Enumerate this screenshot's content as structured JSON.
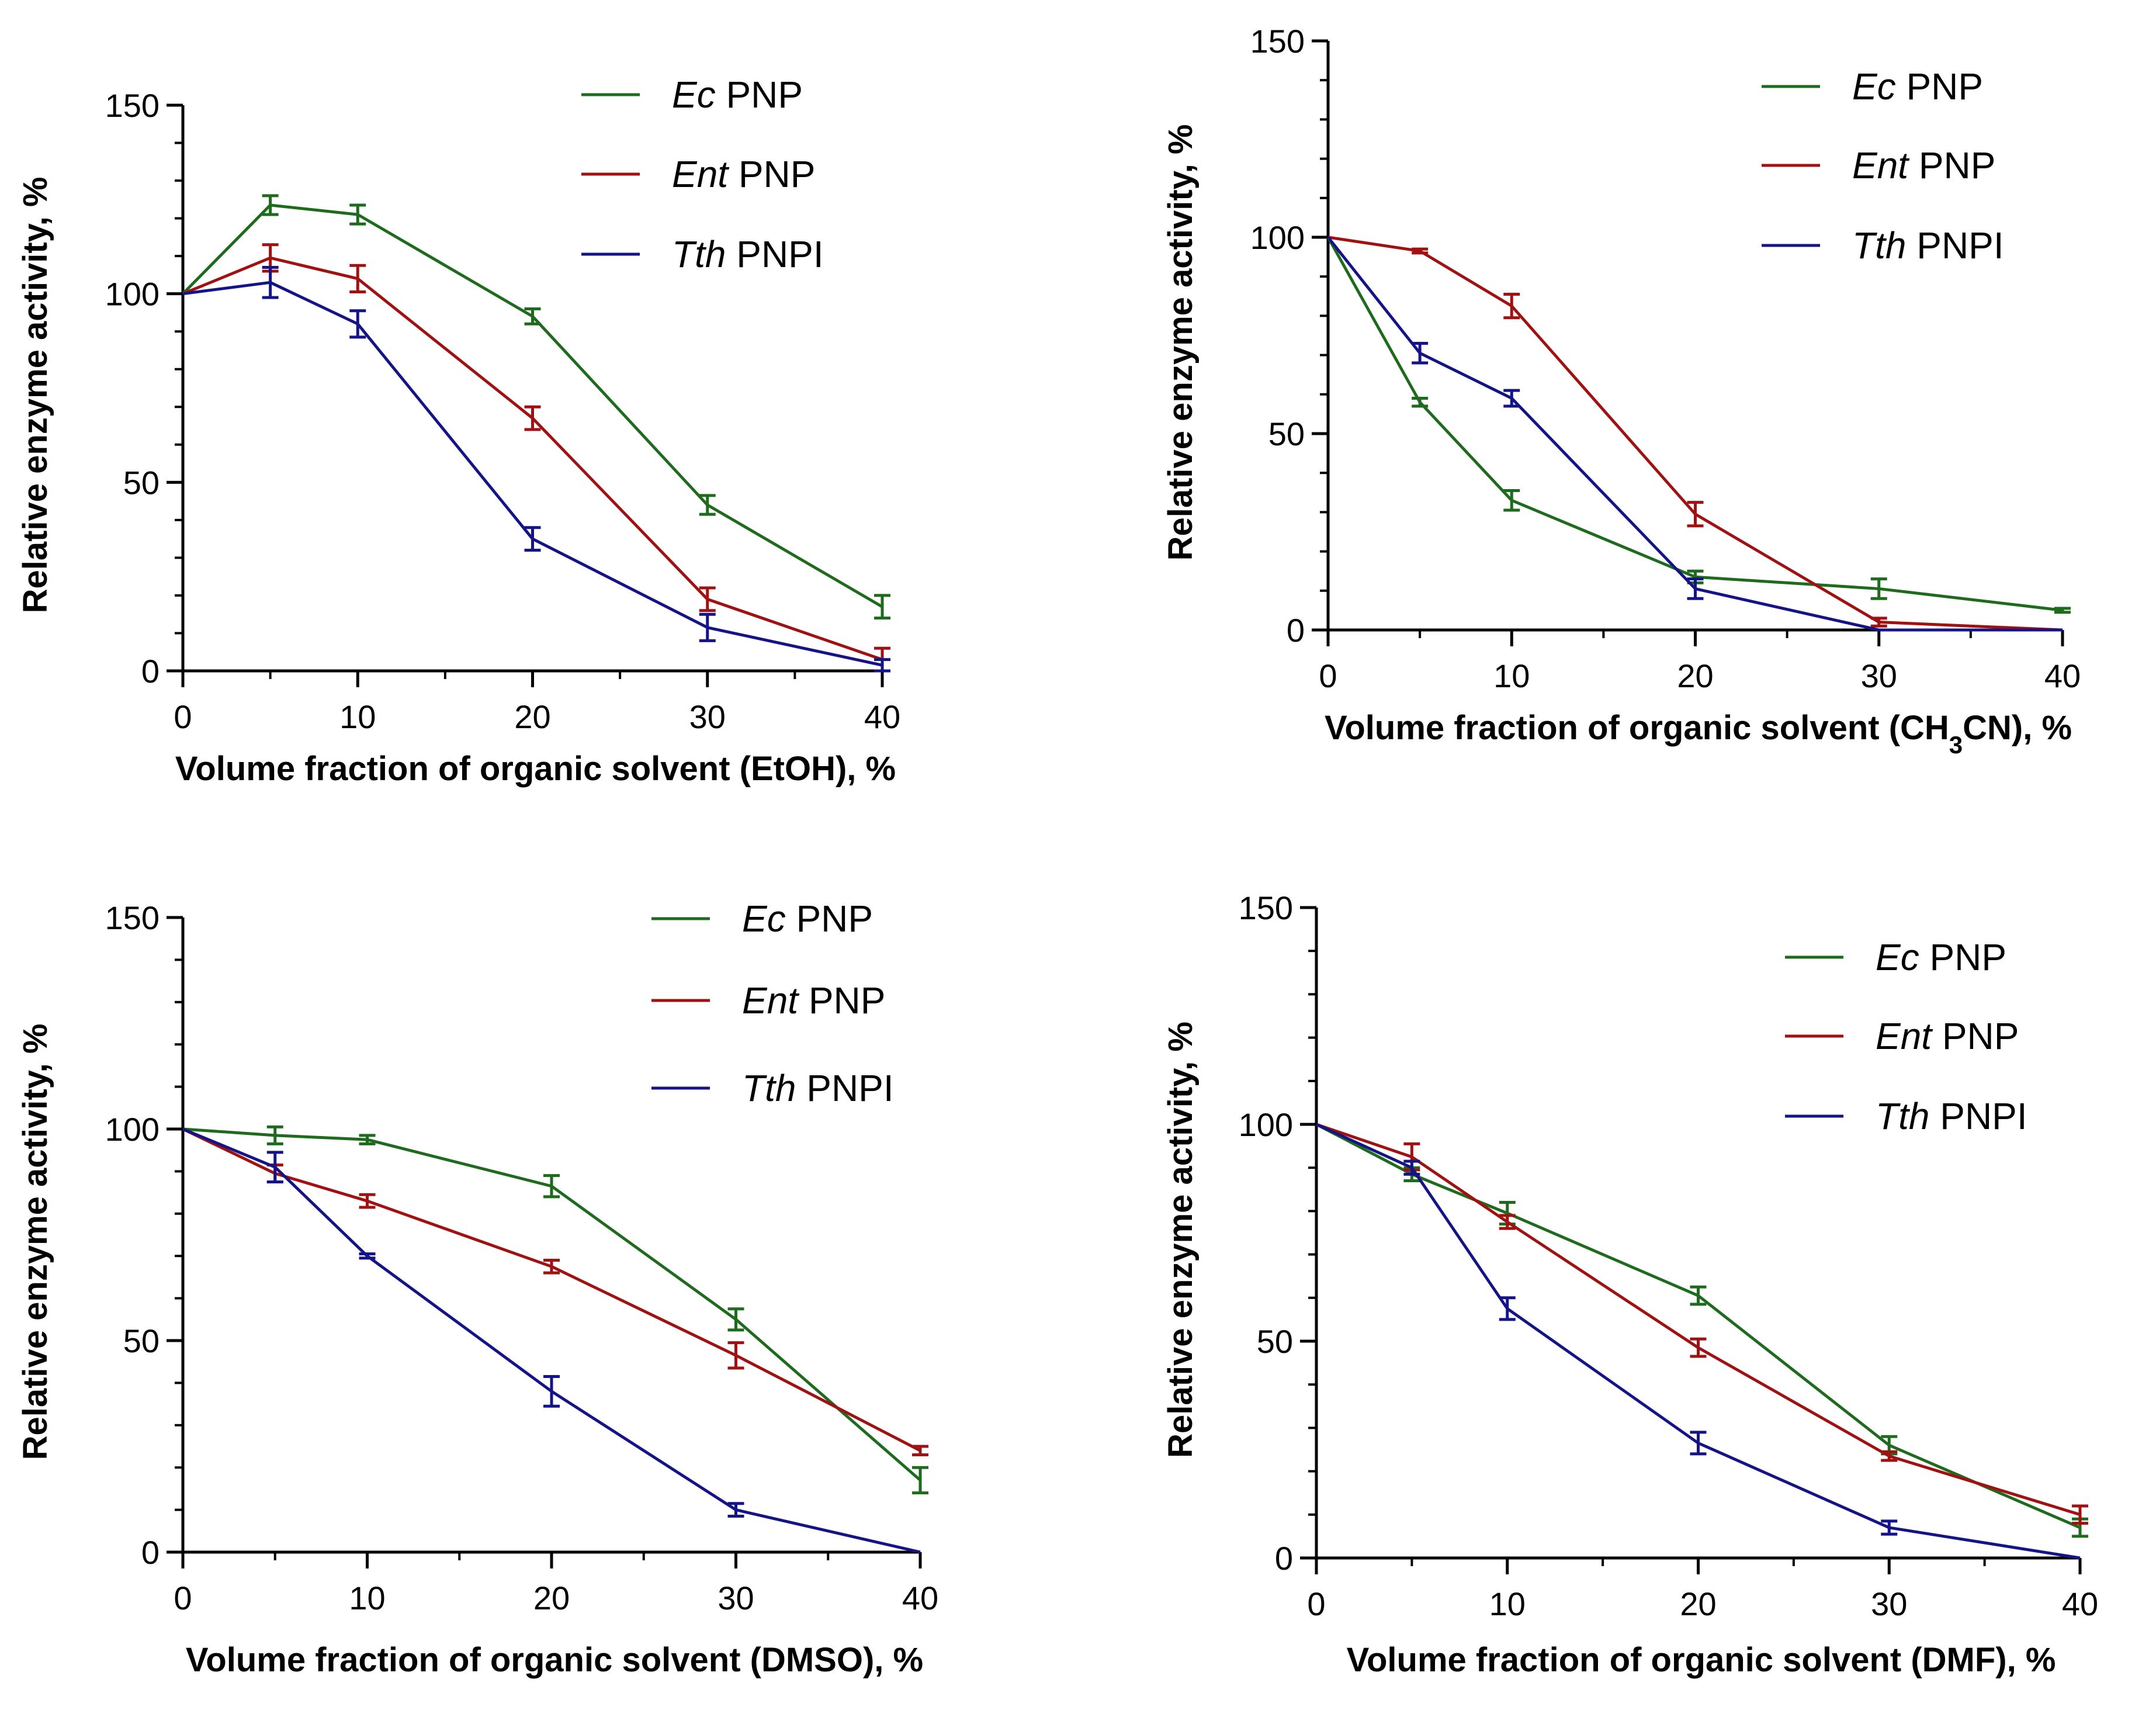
{
  "colors": {
    "Ec": "#1e6b1e",
    "Ent": "#a01212",
    "Tth": "#141487",
    "axis": "#000000"
  },
  "chart_data": [
    {
      "type": "line",
      "x": [
        0,
        5,
        10,
        20,
        30,
        40
      ],
      "xlim": [
        0,
        40
      ],
      "ylim": [
        0,
        150
      ],
      "xticks": [
        "0",
        "10",
        "20",
        "30",
        "40"
      ],
      "yticks": [
        "0",
        "50",
        "100",
        "150"
      ],
      "xlabel": {
        "pre": "Volume fraction of organic solvent (EtOH), %",
        "sub": "",
        "post": ""
      },
      "ylabel": "Relative enzyme activity, %",
      "series": [
        {
          "key": "Ec",
          "name_italic": "Ec",
          "name_rest": " PNP",
          "values": [
            100,
            123.5,
            121,
            94,
            44,
            17
          ],
          "errors": [
            0,
            2.5,
            2.5,
            2,
            2.5,
            3
          ]
        },
        {
          "key": "Ent",
          "name_italic": "Ent",
          "name_rest": " PNP",
          "values": [
            100,
            109.5,
            104,
            67,
            19,
            3
          ],
          "errors": [
            0,
            3.5,
            3.5,
            3,
            3,
            3
          ]
        },
        {
          "key": "Tth",
          "name_italic": "Tth",
          "name_rest": " PNPI",
          "values": [
            100,
            103,
            92,
            35,
            11.5,
            1.5
          ],
          "errors": [
            0,
            4,
            3.5,
            3,
            3.5,
            1.5
          ]
        }
      ]
    },
    {
      "type": "line",
      "x": [
        0,
        5,
        10,
        20,
        30,
        40
      ],
      "xlim": [
        0,
        40
      ],
      "ylim": [
        0,
        150
      ],
      "xticks": [
        "0",
        "10",
        "20",
        "30",
        "40"
      ],
      "yticks": [
        "0",
        "50",
        "100",
        "150"
      ],
      "xlabel": {
        "pre": "Volume fraction of organic solvent (CH",
        "sub": "3",
        "post": "CN), %"
      },
      "ylabel": "Relative enzyme activity, %",
      "series": [
        {
          "key": "Ec",
          "name_italic": "Ec",
          "name_rest": " PNP",
          "values": [
            100,
            58,
            33,
            13.5,
            10.5,
            5
          ],
          "errors": [
            0,
            1,
            2.5,
            1.5,
            2.5,
            0.5
          ]
        },
        {
          "key": "Ent",
          "name_italic": "Ent",
          "name_rest": " PNP",
          "values": [
            100,
            96.5,
            82.5,
            29.5,
            2,
            0
          ],
          "errors": [
            0,
            0.5,
            3,
            3,
            1,
            0
          ]
        },
        {
          "key": "Tth",
          "name_italic": "Tth",
          "name_rest": " PNPI",
          "values": [
            100,
            70.5,
            59,
            10.5,
            0,
            0
          ],
          "errors": [
            0,
            2.5,
            2,
            2.5,
            0,
            0
          ]
        }
      ]
    },
    {
      "type": "line",
      "x": [
        0,
        5,
        10,
        20,
        30,
        40
      ],
      "xlim": [
        0,
        40
      ],
      "ylim": [
        0,
        150
      ],
      "xticks": [
        "0",
        "10",
        "20",
        "30",
        "40"
      ],
      "yticks": [
        "0",
        "50",
        "100",
        "150"
      ],
      "xlabel": {
        "pre": "Volume fraction of organic solvent (DMSO), %",
        "sub": "",
        "post": ""
      },
      "ylabel": "Relative enzyme activity, %",
      "series": [
        {
          "key": "Ec",
          "name_italic": "Ec",
          "name_rest": " PNP",
          "values": [
            100,
            98.5,
            97.5,
            86.5,
            55,
            17
          ],
          "errors": [
            0,
            2,
            1,
            2.5,
            2.5,
            3
          ]
        },
        {
          "key": "Ent",
          "name_italic": "Ent",
          "name_rest": " PNP",
          "values": [
            100,
            89.5,
            83,
            67.5,
            46.5,
            24
          ],
          "errors": [
            0,
            2,
            1.5,
            1.5,
            3,
            1
          ]
        },
        {
          "key": "Tth",
          "name_italic": "Tth",
          "name_rest": " PNPI",
          "values": [
            100,
            91,
            70,
            38,
            10,
            0
          ],
          "errors": [
            0,
            3.5,
            0.5,
            3.5,
            1.5,
            0
          ]
        }
      ]
    },
    {
      "type": "line",
      "x": [
        0,
        5,
        10,
        20,
        30,
        40
      ],
      "xlim": [
        0,
        40
      ],
      "ylim": [
        0,
        150
      ],
      "xticks": [
        "0",
        "10",
        "20",
        "30",
        "40"
      ],
      "yticks": [
        "0",
        "50",
        "100",
        "150"
      ],
      "xlabel": {
        "pre": "Volume fraction of organic solvent (DMF), %",
        "sub": "",
        "post": ""
      },
      "ylabel": "Relative enzyme activity, %",
      "series": [
        {
          "key": "Ec",
          "name_italic": "Ec",
          "name_rest": " PNP",
          "values": [
            100,
            88.5,
            79.5,
            60.5,
            26,
            7
          ],
          "errors": [
            0,
            1.5,
            2.5,
            2,
            2,
            2
          ]
        },
        {
          "key": "Ent",
          "name_italic": "Ent",
          "name_rest": " PNP",
          "values": [
            100,
            92.5,
            77.5,
            48.5,
            23.5,
            10
          ],
          "errors": [
            0,
            3,
            1.5,
            2,
            1,
            2
          ]
        },
        {
          "key": "Tth",
          "name_italic": "Tth",
          "name_rest": " PNPI",
          "values": [
            100,
            90,
            57.5,
            26.5,
            7,
            0
          ],
          "errors": [
            0,
            1.5,
            2.5,
            2.5,
            1.5,
            0
          ]
        }
      ]
    }
  ]
}
